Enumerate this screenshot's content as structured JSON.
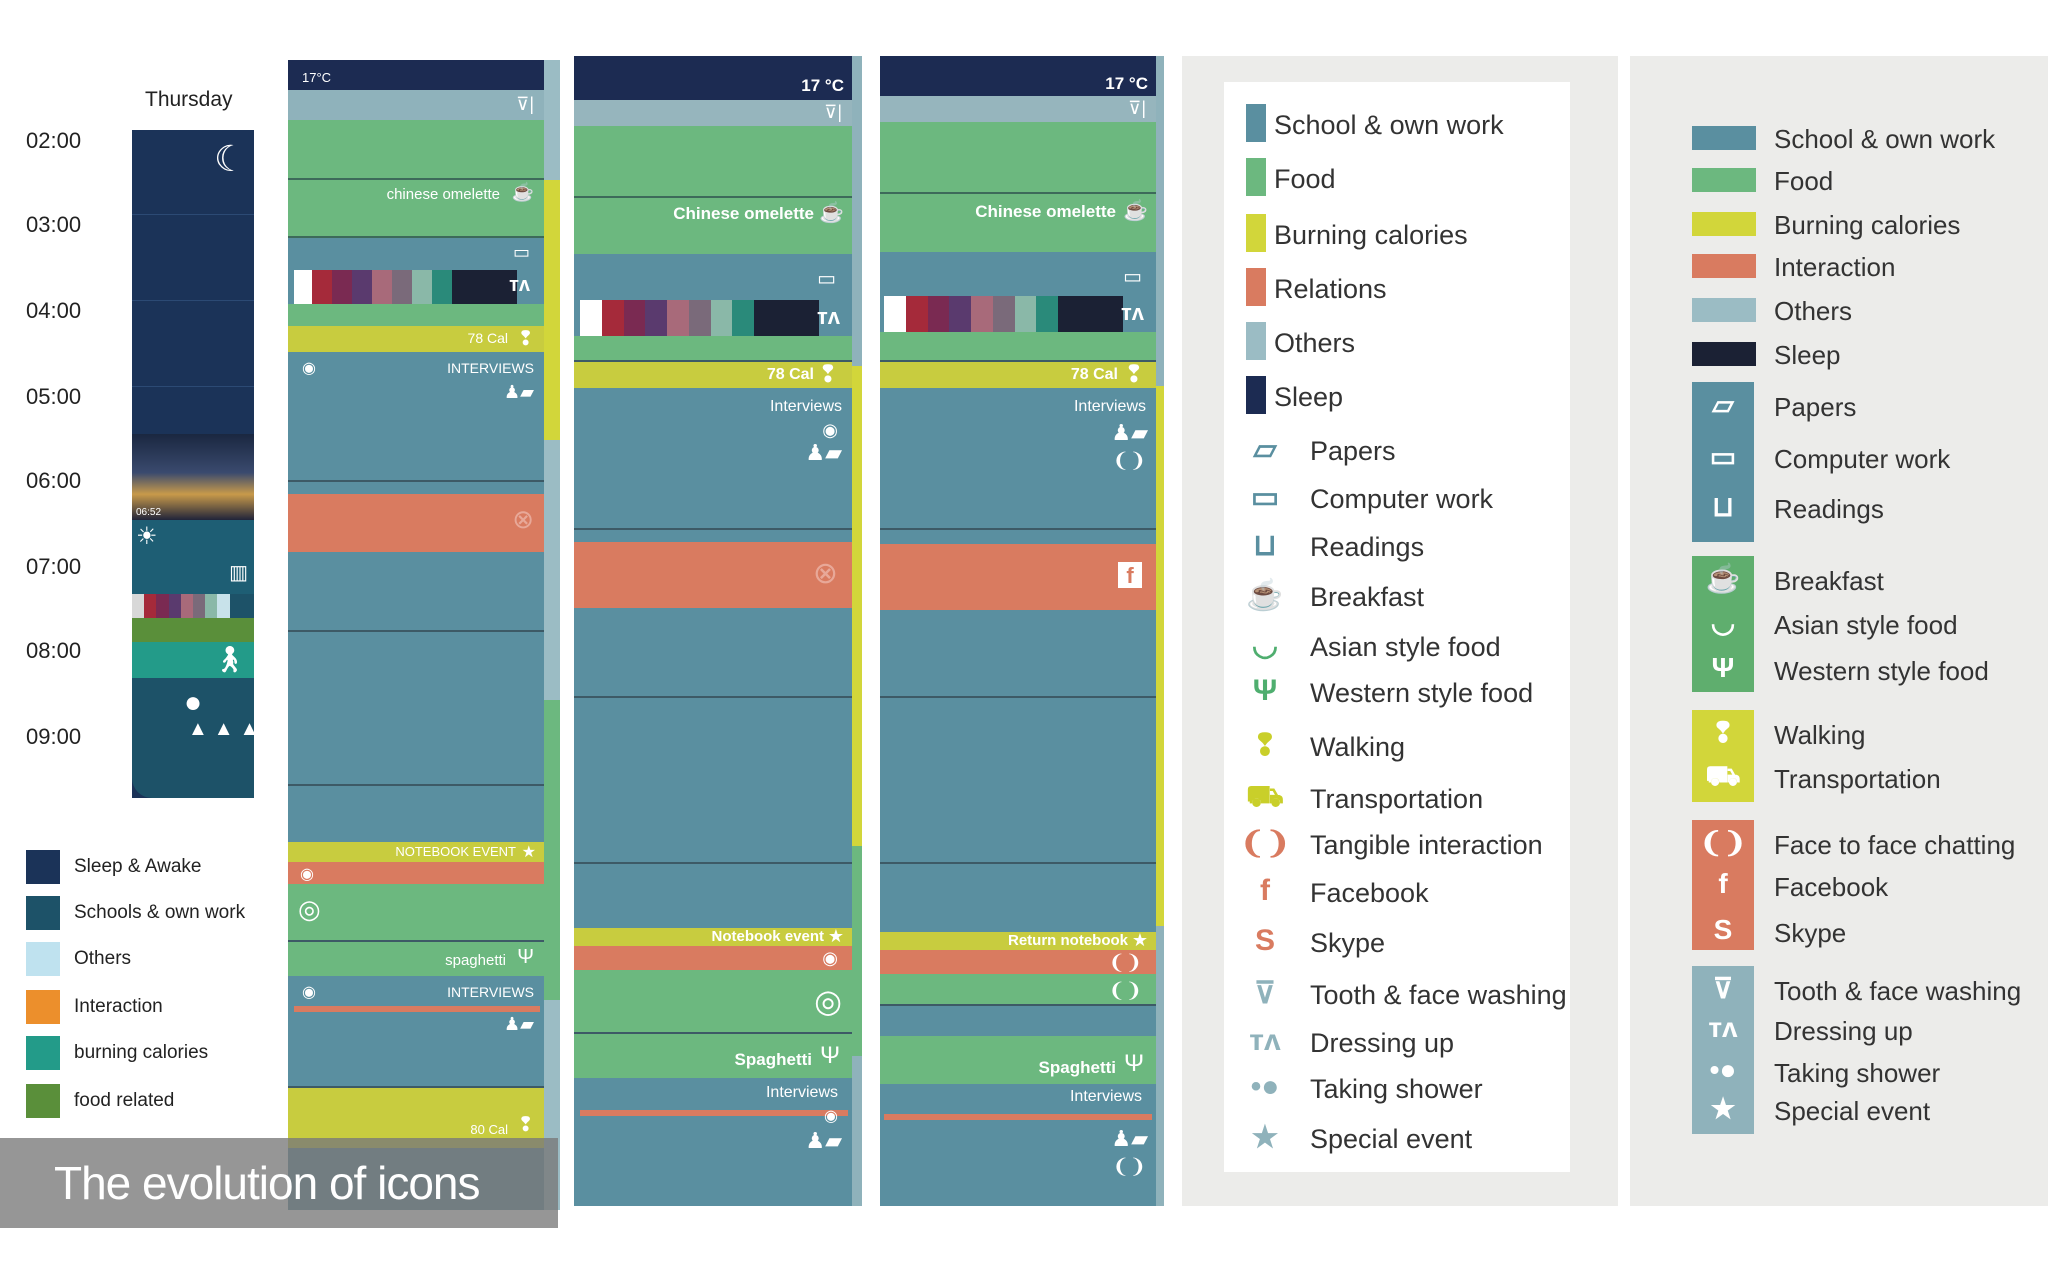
{
  "colors": {
    "bg": "#ffffff",
    "panel_bg": "#ececea",
    "navy": "#1c2b52",
    "teal": "#5a8fa0",
    "green": "#6cb87f",
    "yellow": "#c8cc3f",
    "coral": "#d97b60",
    "gray": "#96b5bd",
    "dark": "#222a38"
  },
  "day_panel": {
    "day": "Thursday",
    "hours": [
      "02:00",
      "03:00",
      "04:00",
      "05:00",
      "06:00",
      "07:00",
      "08:00",
      "09:00"
    ],
    "sunrise_time": "06:52",
    "legend": [
      {
        "label": "Sleep & Awake",
        "color": "#1b3358"
      },
      {
        "label": "Schools & own work",
        "color": "#1d5268"
      },
      {
        "label": "Others",
        "color": "#bfe2ef"
      },
      {
        "label": "Interaction",
        "color": "#ec8f2c"
      },
      {
        "label": "burning calories",
        "color": "#239b89"
      },
      {
        "label": "food related",
        "color": "#5a8f3a"
      }
    ]
  },
  "timeline1": {
    "temp": "17°C",
    "food1": "chinese omelette",
    "cal1": "78 Cal",
    "int1": "INTERVIEWS",
    "event": "NOTEBOOK EVENT",
    "food2": "spaghetti",
    "int2": "INTERVIEWS",
    "cal2": "80 Cal"
  },
  "timeline2": {
    "temp": "17 °C",
    "food1": "Chinese omelette",
    "cal1": "78 Cal",
    "int1": "Interviews",
    "event": "Notebook event",
    "food2": "Spaghetti",
    "int2": "Interviews"
  },
  "timeline3": {
    "temp": "17 °C",
    "food1": "Chinese omelette",
    "cal1": "78 Cal",
    "int1": "Interviews",
    "event": "Return notebook",
    "food2": "Spaghetti",
    "int2": "Interviews"
  },
  "caption": "The evolution of icons",
  "legend_middle": {
    "swatches": [
      {
        "label": "School & own work",
        "color": "#5a8fa0"
      },
      {
        "label": "Food",
        "color": "#6cb87f"
      },
      {
        "label": "Burning calories",
        "color": "#d2d63a"
      },
      {
        "label": "Relations",
        "color": "#d97b60"
      },
      {
        "label": "Others",
        "color": "#9bbcc4"
      },
      {
        "label": "Sleep",
        "color": "#1c2b52"
      }
    ],
    "icons": [
      {
        "label": "Papers",
        "icon": "papers-icon",
        "glyph": "▱",
        "color": "#5a8fa0"
      },
      {
        "label": "Computer work",
        "icon": "laptop-icon",
        "glyph": "▭",
        "color": "#5a8fa0"
      },
      {
        "label": "Readings",
        "icon": "book-icon",
        "glyph": "⊔",
        "color": "#5a8fa0"
      },
      {
        "label": "Breakfast",
        "icon": "breakfast-icon",
        "glyph": "☕",
        "color": "#4fae6f"
      },
      {
        "label": "Asian style food",
        "icon": "bowl-icon",
        "glyph": "◡",
        "color": "#4fae6f"
      },
      {
        "label": "Western style food",
        "icon": "fork-knife-icon",
        "glyph": "Ψ",
        "color": "#4fae6f"
      },
      {
        "label": "Walking",
        "icon": "footprints-icon",
        "glyph": "❢",
        "color": "#c9cf2a"
      },
      {
        "label": "Transportation",
        "icon": "car-icon",
        "glyph": "⛟",
        "color": "#c9cf2a"
      },
      {
        "label": "Tangible interaction",
        "icon": "hands-icon",
        "glyph": "❨❩",
        "color": "#d97b60"
      },
      {
        "label": "Facebook",
        "icon": "facebook-icon",
        "glyph": "f",
        "color": "#d97b60"
      },
      {
        "label": "Skype",
        "icon": "skype-icon",
        "glyph": "S",
        "color": "#d97b60"
      },
      {
        "label": "Tooth & face washing",
        "icon": "cup-toothbrush-icon",
        "glyph": "⊽",
        "color": "#8fb2bb"
      },
      {
        "label": "Dressing up",
        "icon": "clothes-icon",
        "glyph": "ᴛᴧ",
        "color": "#8fb2bb"
      },
      {
        "label": "Taking shower",
        "icon": "bubbles-icon",
        "glyph": "•●",
        "color": "#8fb2bb"
      },
      {
        "label": "Special event",
        "icon": "star-icon",
        "glyph": "★",
        "color": "#8fb2bb"
      }
    ]
  },
  "legend_right": {
    "swatches": [
      {
        "label": "School & own work",
        "color": "#5a8fa0"
      },
      {
        "label": "Food",
        "color": "#6cb87f"
      },
      {
        "label": "Burning calories",
        "color": "#d2d63a"
      },
      {
        "label": "Interaction",
        "color": "#d97b60"
      },
      {
        "label": "Others",
        "color": "#9bbcc4"
      },
      {
        "label": "Sleep",
        "color": "#1b2134"
      }
    ],
    "groups": [
      {
        "color": "#5a8fa0",
        "items": [
          {
            "label": "Papers",
            "icon": "papers-icon",
            "glyph": "▱"
          },
          {
            "label": "Computer work",
            "icon": "laptop-icon",
            "glyph": "▭"
          },
          {
            "label": "Readings",
            "icon": "book-icon",
            "glyph": "⊔"
          }
        ]
      },
      {
        "color": "#5fae6e",
        "items": [
          {
            "label": "Breakfast",
            "icon": "breakfast-icon",
            "glyph": "☕"
          },
          {
            "label": "Asian style food",
            "icon": "bowl-icon",
            "glyph": "◡"
          },
          {
            "label": "Western style food",
            "icon": "fork-knife-icon",
            "glyph": "Ψ"
          }
        ]
      },
      {
        "color": "#d2d63a",
        "items": [
          {
            "label": "Walking",
            "icon": "footprints-icon",
            "glyph": "❢"
          },
          {
            "label": "Transportation",
            "icon": "car-icon",
            "glyph": "⛟"
          }
        ]
      },
      {
        "color": "#d97b60",
        "items": [
          {
            "label": "Face to face chatting",
            "icon": "hands-icon",
            "glyph": "❨❩"
          },
          {
            "label": "Facebook",
            "icon": "facebook-icon",
            "glyph": "f"
          },
          {
            "label": "Skype",
            "icon": "skype-icon",
            "glyph": "S"
          }
        ]
      },
      {
        "color": "#8fb2bb",
        "items": [
          {
            "label": "Tooth & face washing",
            "icon": "cup-toothbrush-icon",
            "glyph": "⊽"
          },
          {
            "label": "Dressing up",
            "icon": "clothes-icon",
            "glyph": "ᴛᴧ"
          },
          {
            "label": "Taking shower",
            "icon": "bubbles-icon",
            "glyph": "•●"
          },
          {
            "label": "Special event",
            "icon": "star-icon",
            "glyph": "★"
          }
        ]
      }
    ]
  }
}
